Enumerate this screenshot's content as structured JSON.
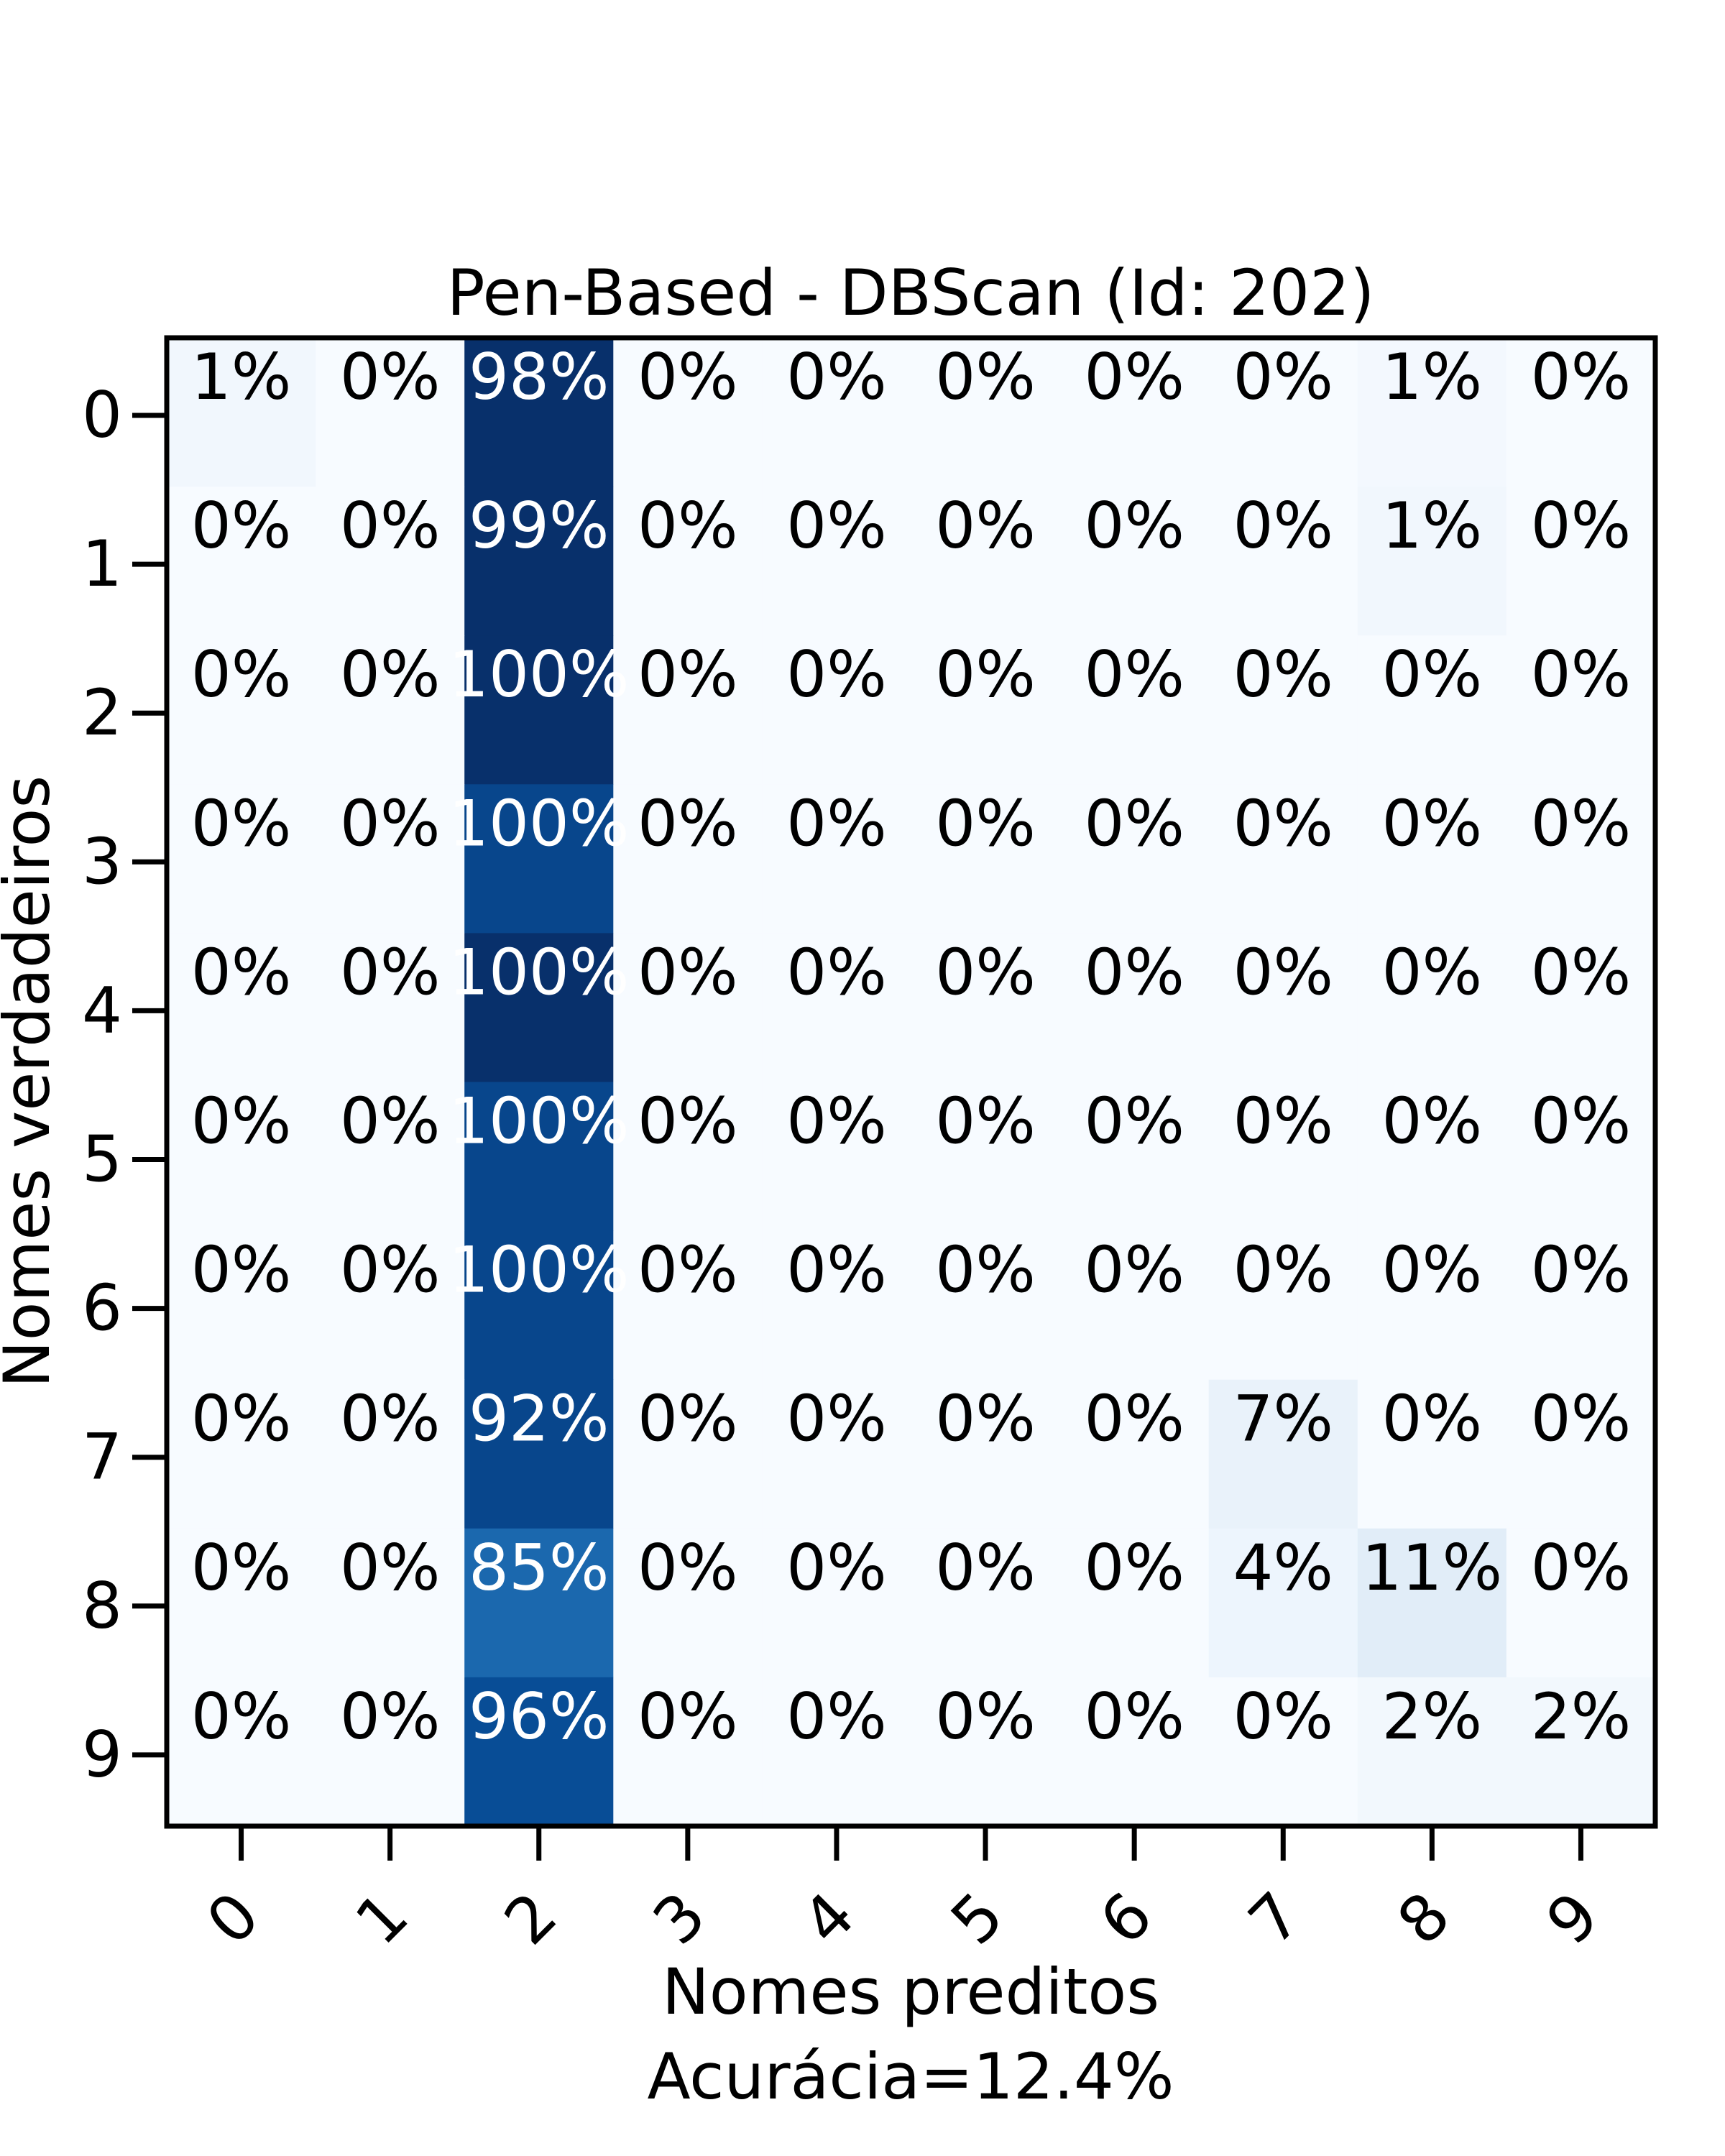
{
  "chart_data": {
    "type": "heatmap",
    "title": "Pen-Based - DBScan (Id: 202)",
    "xlabel": "Nomes preditos",
    "xlabel_sub": "Acurácia=12.4%",
    "ylabel": "Nomes verdadeiros",
    "x_categories": [
      "0",
      "1",
      "2",
      "3",
      "4",
      "5",
      "6",
      "7",
      "8",
      "9"
    ],
    "y_categories": [
      "0",
      "1",
      "2",
      "3",
      "4",
      "5",
      "6",
      "7",
      "8",
      "9"
    ],
    "colormap": "Blues",
    "value_range": [
      0,
      100
    ],
    "unit": "%",
    "values": [
      [
        1,
        0,
        98,
        0,
        0,
        0,
        0,
        0,
        1,
        0
      ],
      [
        0,
        0,
        99,
        0,
        0,
        0,
        0,
        0,
        1,
        0
      ],
      [
        0,
        0,
        100,
        0,
        0,
        0,
        0,
        0,
        0,
        0
      ],
      [
        0,
        0,
        100,
        0,
        0,
        0,
        0,
        0,
        0,
        0
      ],
      [
        0,
        0,
        100,
        0,
        0,
        0,
        0,
        0,
        0,
        0
      ],
      [
        0,
        0,
        100,
        0,
        0,
        0,
        0,
        0,
        0,
        0
      ],
      [
        0,
        0,
        100,
        0,
        0,
        0,
        0,
        0,
        0,
        0
      ],
      [
        0,
        0,
        92,
        0,
        0,
        0,
        0,
        7,
        0,
        0
      ],
      [
        0,
        0,
        85,
        0,
        0,
        0,
        0,
        4,
        11,
        0
      ],
      [
        0,
        0,
        96,
        0,
        0,
        0,
        0,
        0,
        2,
        2
      ]
    ],
    "cell_colors": [
      [
        "#f1f7fd",
        "#f7fbff",
        "#08306b",
        "#f7fbff",
        "#f7fbff",
        "#f7fbff",
        "#f7fbff",
        "#f7fbff",
        "#f3f8fe",
        "#f7fbff"
      ],
      [
        "#f7fbff",
        "#f7fbff",
        "#08306b",
        "#f7fbff",
        "#f7fbff",
        "#f7fbff",
        "#f7fbff",
        "#f7fbff",
        "#f1f7fd",
        "#f7fbff"
      ],
      [
        "#f7fbff",
        "#f7fbff",
        "#08306b",
        "#f7fbff",
        "#f7fbff",
        "#f7fbff",
        "#f7fbff",
        "#f7fbff",
        "#f7fbff",
        "#f7fbff"
      ],
      [
        "#f7fbff",
        "#f7fbff",
        "#08468c",
        "#f7fbff",
        "#f7fbff",
        "#f7fbff",
        "#f7fbff",
        "#f7fbff",
        "#f7fbff",
        "#f7fbff"
      ],
      [
        "#f7fbff",
        "#f7fbff",
        "#08306b",
        "#f7fbff",
        "#f7fbff",
        "#f7fbff",
        "#f7fbff",
        "#f7fbff",
        "#f7fbff",
        "#f7fbff"
      ],
      [
        "#f7fbff",
        "#f7fbff",
        "#08468c",
        "#f7fbff",
        "#f7fbff",
        "#f7fbff",
        "#f7fbff",
        "#f7fbff",
        "#f7fbff",
        "#f7fbff"
      ],
      [
        "#f7fbff",
        "#f7fbff",
        "#08468c",
        "#f7fbff",
        "#f7fbff",
        "#f7fbff",
        "#f7fbff",
        "#f7fbff",
        "#f7fbff",
        "#f7fbff"
      ],
      [
        "#f7fbff",
        "#f7fbff",
        "#08468c",
        "#f7fbff",
        "#f7fbff",
        "#f7fbff",
        "#f7fbff",
        "#e9f2fa",
        "#f7fbff",
        "#f7fbff"
      ],
      [
        "#f7fbff",
        "#f7fbff",
        "#1b68ae",
        "#f7fbff",
        "#f7fbff",
        "#f7fbff",
        "#f7fbff",
        "#edf5fd",
        "#e1edf8",
        "#f7fbff"
      ],
      [
        "#f7fbff",
        "#f7fbff",
        "#084d96",
        "#f7fbff",
        "#f7fbff",
        "#f7fbff",
        "#f7fbff",
        "#f7fbff",
        "#f2f8fd",
        "#f2f8fd"
      ]
    ],
    "grid": false,
    "legend": "none"
  }
}
